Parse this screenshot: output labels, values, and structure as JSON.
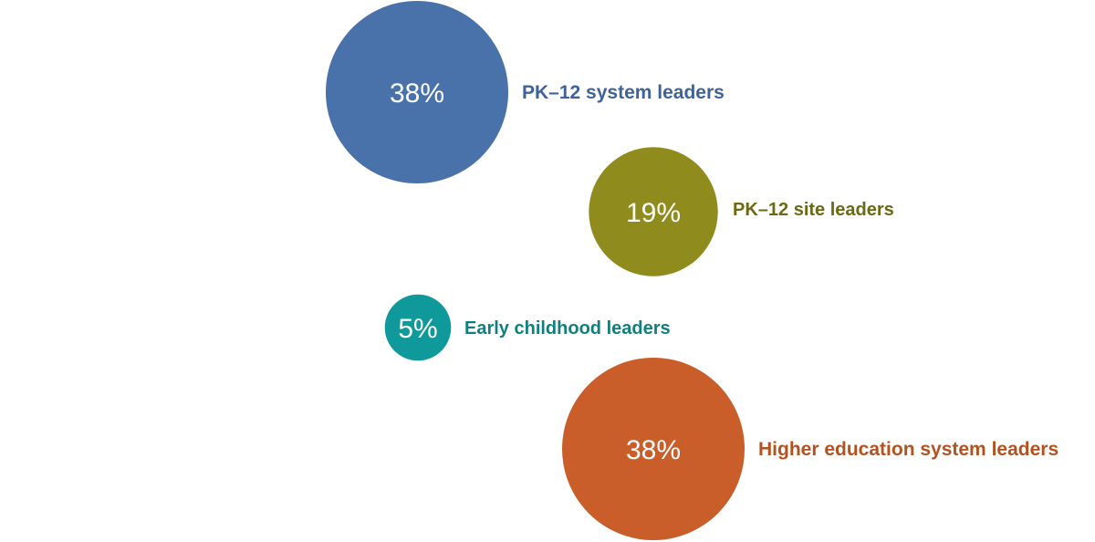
{
  "chart_data": {
    "type": "bubble",
    "series": [
      {
        "name": "PK–12 system leaders",
        "value": 38,
        "label": "38%",
        "color": "#4a72aa"
      },
      {
        "name": "PK–12 site leaders",
        "value": 19,
        "label": "19%",
        "color": "#8f8b1d"
      },
      {
        "name": "Early childhood leaders",
        "value": 5,
        "label": "5%",
        "color": "#10999a"
      },
      {
        "name": "Higher education system leaders",
        "value": 38,
        "label": "38%",
        "color": "#c95e2a"
      }
    ],
    "label_colors": [
      "#3f6398",
      "#6b6a14",
      "#107f80",
      "#b4521f"
    ]
  }
}
